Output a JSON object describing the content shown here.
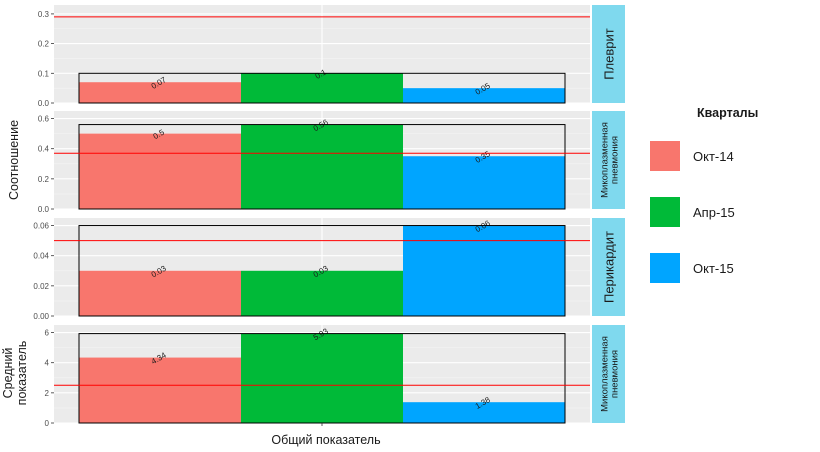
{
  "chart_data": {
    "type": "bar",
    "xlabel": "Общий показатель",
    "categories": [
      ""
    ],
    "legend": {
      "title": "Кварталы",
      "position": "right",
      "entries": [
        {
          "label": "Окт-14",
          "color": "#F8766D"
        },
        {
          "label": "Апр-15",
          "color": "#00BA38"
        },
        {
          "label": "Окт-15",
          "color": "#00A5FF"
        }
      ]
    },
    "row_labels": [
      {
        "text": "Соотношение",
        "lines": [
          "Соотношение"
        ]
      },
      {
        "text": "Средний показатель",
        "lines": [
          "Средний",
          "показатель"
        ]
      }
    ],
    "panels": [
      {
        "strip": "Плеврит",
        "strip_lines": [
          "Плеврит"
        ],
        "ylim": [
          0,
          0.33
        ],
        "yticks": [
          0.0,
          0.1,
          0.2,
          0.3
        ],
        "ytick_labels": [
          "0.0",
          "0.1",
          "0.2",
          "0.3"
        ],
        "reference_line": 0.29,
        "series": [
          {
            "name": "Окт-14",
            "value": 0.07,
            "label": "0.07"
          },
          {
            "name": "Апр-15",
            "value": 0.1,
            "label": "0.1"
          },
          {
            "name": "Окт-15",
            "value": 0.05,
            "label": "0.05"
          }
        ]
      },
      {
        "strip": "Микоплазменная пневмония",
        "strip_lines": [
          "Микоплазменная",
          "пневмония"
        ],
        "ylim": [
          0,
          0.65
        ],
        "yticks": [
          0.0,
          0.2,
          0.4,
          0.6
        ],
        "ytick_labels": [
          "0.0",
          "0.2",
          "0.4",
          "0.6"
        ],
        "reference_line": 0.37,
        "series": [
          {
            "name": "Окт-14",
            "value": 0.5,
            "label": "0.5"
          },
          {
            "name": "Апр-15",
            "value": 0.56,
            "label": "0.56"
          },
          {
            "name": "Окт-15",
            "value": 0.35,
            "label": "0.35"
          }
        ]
      },
      {
        "strip": "Перикардит",
        "strip_lines": [
          "Перикардит"
        ],
        "ylim": [
          0,
          0.065
        ],
        "yticks": [
          0.0,
          0.02,
          0.04,
          0.06
        ],
        "ytick_labels": [
          "0.00",
          "0.02",
          "0.04",
          "0.06"
        ],
        "reference_line": 0.05,
        "series": [
          {
            "name": "Окт-14",
            "value": 0.03,
            "label": "0.03"
          },
          {
            "name": "Апр-15",
            "value": 0.03,
            "label": "0.03"
          },
          {
            "name": "Окт-15",
            "value": 0.06,
            "label": "0.06"
          }
        ]
      },
      {
        "strip": "Микоплазменная пневмония",
        "strip_lines": [
          "Микоплазменная",
          "пневмония"
        ],
        "ylim": [
          0,
          6.5
        ],
        "yticks": [
          0,
          2,
          4,
          6
        ],
        "ytick_labels": [
          "0",
          "2",
          "4",
          "6"
        ],
        "reference_line": 2.5,
        "series": [
          {
            "name": "Окт-14",
            "value": 4.34,
            "label": "4.34"
          },
          {
            "name": "Апр-15",
            "value": 5.93,
            "label": "5.93"
          },
          {
            "name": "Окт-15",
            "value": 1.38,
            "label": "1.38"
          }
        ]
      }
    ],
    "reference_line_color": "#FF0000",
    "panel_background": "#EBEBEB",
    "strip_background": "#7FD9EE",
    "grid": true
  }
}
